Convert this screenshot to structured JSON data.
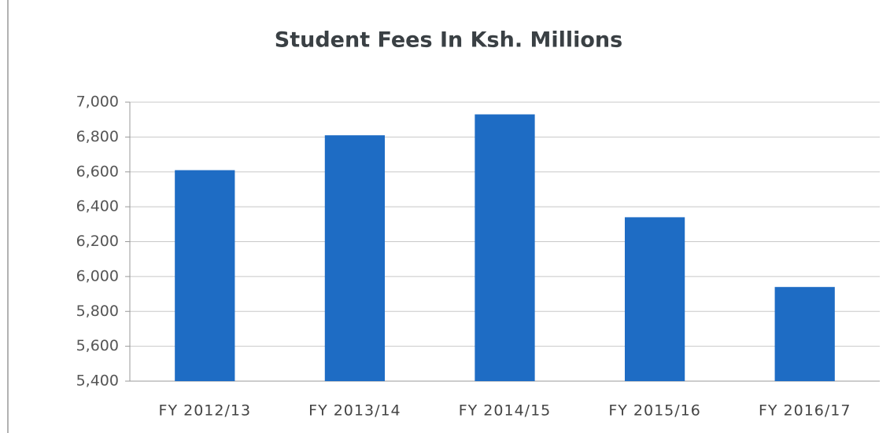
{
  "chart_data": {
    "type": "bar",
    "title": "Student Fees In Ksh. Millions",
    "categories": [
      "FY 2012/13",
      "FY 2013/14",
      "FY 2014/15",
      "FY 2015/16",
      "FY 2016/17"
    ],
    "values": [
      6610,
      6810,
      6930,
      6340,
      5940
    ],
    "color": "#1e6cc4",
    "ylim": [
      5400,
      7000
    ],
    "yticks": [
      {
        "value": 5400,
        "label": "5,400"
      },
      {
        "value": 5600,
        "label": "5,600"
      },
      {
        "value": 5800,
        "label": "5,800"
      },
      {
        "value": 6000,
        "label": "6,000"
      },
      {
        "value": 6200,
        "label": "6,200"
      },
      {
        "value": 6400,
        "label": "6,400"
      },
      {
        "value": 6600,
        "label": "6,600"
      },
      {
        "value": 6800,
        "label": "6,800"
      },
      {
        "value": 7000,
        "label": "7,000"
      }
    ],
    "grid": true
  }
}
